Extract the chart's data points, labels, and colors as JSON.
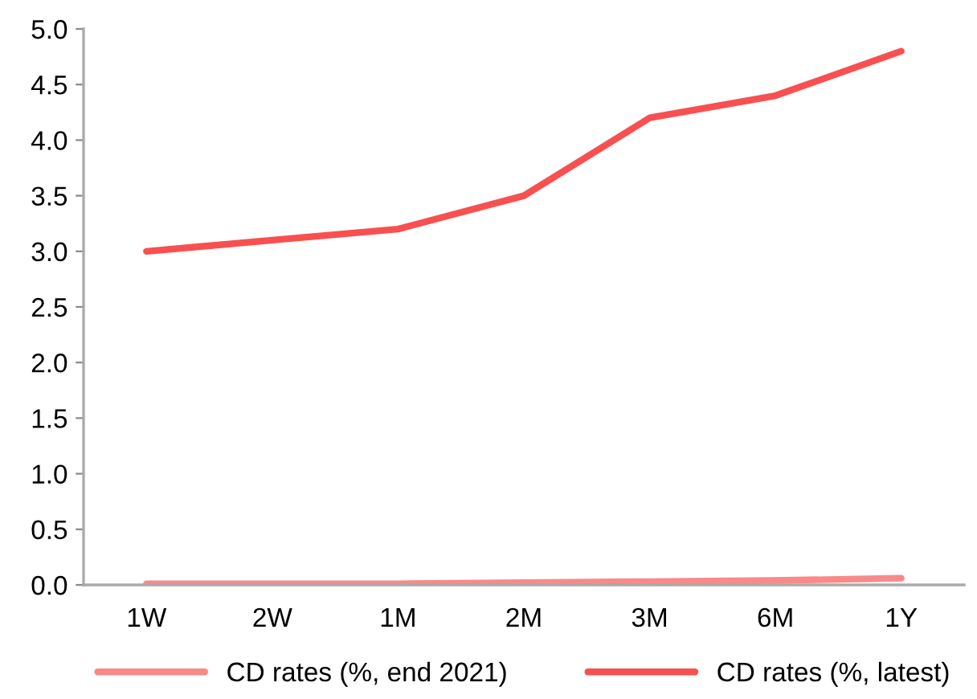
{
  "chart_data": {
    "type": "line",
    "categories": [
      "1W",
      "2W",
      "1M",
      "2M",
      "3M",
      "6M",
      "1Y"
    ],
    "series": [
      {
        "name": "CD rates (%, end 2021)",
        "color": "#f88a8a",
        "values": [
          0.01,
          0.01,
          0.01,
          0.02,
          0.03,
          0.04,
          0.06
        ]
      },
      {
        "name": "CD rates (%, latest)",
        "color": "#f85050",
        "values": [
          3.0,
          3.1,
          3.2,
          3.5,
          4.2,
          4.4,
          4.8
        ]
      }
    ],
    "ylim": [
      0,
      5
    ],
    "yticks": [
      {
        "value": 0,
        "label": "0.0"
      },
      {
        "value": 0.5,
        "label": "0.5"
      },
      {
        "value": 1,
        "label": "1.0"
      },
      {
        "value": 1.5,
        "label": "1.5"
      },
      {
        "value": 2,
        "label": "2.0"
      },
      {
        "value": 2.5,
        "label": "2.5"
      },
      {
        "value": 3,
        "label": "3.0"
      },
      {
        "value": 3.5,
        "label": "3.5"
      },
      {
        "value": 4,
        "label": "4.0"
      },
      {
        "value": 4.5,
        "label": "4.5"
      },
      {
        "value": 5,
        "label": "5.0"
      }
    ],
    "grid": false,
    "legend": "bottom",
    "marker": "none",
    "line_style": "solid"
  }
}
